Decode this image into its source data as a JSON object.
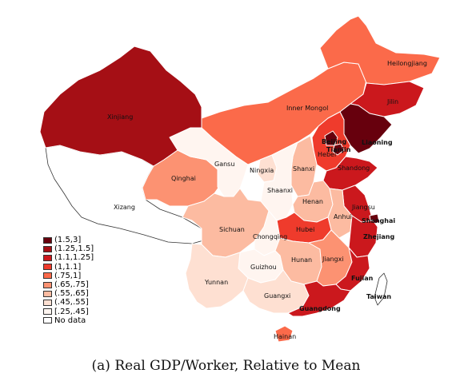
{
  "caption": "(a) Real GDP/Worker, Relative to Mean",
  "legend": [
    {
      "label": "(1.5,3]",
      "color": "#67000d"
    },
    {
      "label": "(1.25,1.5]",
      "color": "#a50f15"
    },
    {
      "label": "(1.1,1.25]",
      "color": "#cb181d"
    },
    {
      "label": "(1,1.1]",
      "color": "#ef3b2c"
    },
    {
      "label": "(.75,1]",
      "color": "#fb6a4a"
    },
    {
      "label": "(.65,.75]",
      "color": "#fc9272"
    },
    {
      "label": "(.55,.65]",
      "color": "#fcbba1"
    },
    {
      "label": "(.45,.55]",
      "color": "#fee0d2"
    },
    {
      "label": "[.25,.45]",
      "color": "#fff5f0"
    },
    {
      "label": "No data",
      "color": "#ffffff"
    }
  ],
  "provinces": [
    {
      "name": "Xinjiang",
      "bin": 1
    },
    {
      "name": "Xizang",
      "bin": 9
    },
    {
      "name": "Qinghai",
      "bin": 5
    },
    {
      "name": "Gansu",
      "bin": 8
    },
    {
      "name": "Inner Mongol",
      "bin": 4
    },
    {
      "name": "Heilongjiang",
      "bin": 4
    },
    {
      "name": "Jilin",
      "bin": 2
    },
    {
      "name": "Liaoning",
      "bin": 0
    },
    {
      "name": "Beijing",
      "bin": 0
    },
    {
      "name": "Tianjin",
      "bin": 0
    },
    {
      "name": "Hebei",
      "bin": 3
    },
    {
      "name": "Shanxi",
      "bin": 6
    },
    {
      "name": "Ningxia",
      "bin": 7
    },
    {
      "name": "Shaanxi",
      "bin": 8
    },
    {
      "name": "Shandong",
      "bin": 2
    },
    {
      "name": "Henan",
      "bin": 6
    },
    {
      "name": "Jiangsu",
      "bin": 2
    },
    {
      "name": "Anhui",
      "bin": 6
    },
    {
      "name": "Shanghai",
      "bin": 0
    },
    {
      "name": "Hubei",
      "bin": 3
    },
    {
      "name": "Zhejiang",
      "bin": 2
    },
    {
      "name": "Sichuan",
      "bin": 6
    },
    {
      "name": "Chongqing",
      "bin": 8
    },
    {
      "name": "Hunan",
      "bin": 6
    },
    {
      "name": "Jiangxi",
      "bin": 5
    },
    {
      "name": "Fujian",
      "bin": 2
    },
    {
      "name": "Taiwan",
      "bin": 9
    },
    {
      "name": "Guizhou",
      "bin": 8
    },
    {
      "name": "Yunnan",
      "bin": 7
    },
    {
      "name": "Guangxi",
      "bin": 7
    },
    {
      "name": "Guangdong",
      "bin": 2
    },
    {
      "name": "Hainan",
      "bin": 4
    }
  ]
}
